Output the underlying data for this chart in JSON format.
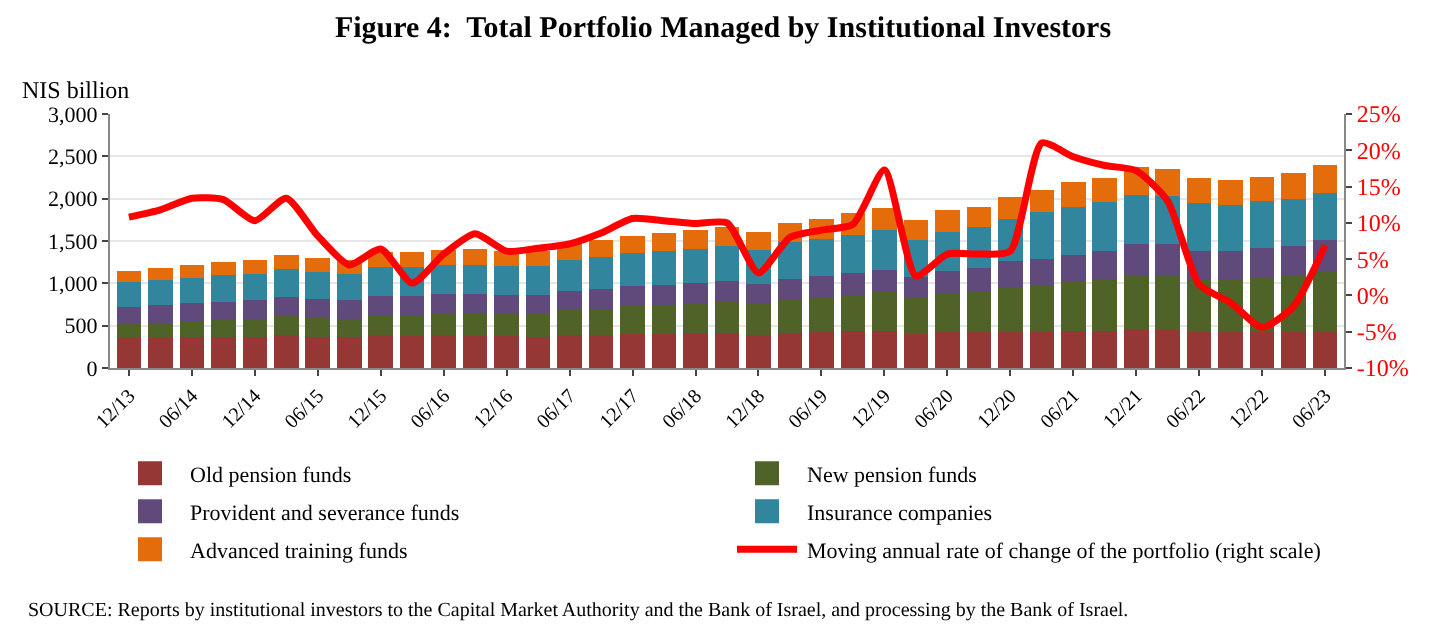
{
  "chart_data": {
    "type": "bar",
    "stacked": true,
    "title": "Figure 4:  Total Portfolio Managed by Institutional Investors",
    "ylabel": "NIS billion",
    "categories": [
      "12/13",
      null,
      "06/14",
      null,
      "12/14",
      null,
      "06/15",
      null,
      "12/15",
      null,
      "06/16",
      null,
      "12/16",
      null,
      "06/17",
      null,
      "12/17",
      null,
      "06/18",
      null,
      "12/18",
      null,
      "06/19",
      null,
      "12/19",
      null,
      "06/20",
      null,
      "12/20",
      null,
      "06/21",
      null,
      "12/21",
      null,
      "06/22",
      null,
      "12/22",
      null,
      "06/23"
    ],
    "series": [
      {
        "name": "Old pension funds",
        "color": "#953735",
        "values": [
          350,
          355,
          364,
          369,
          372,
          387,
          372,
          362,
          385,
          381,
          384,
          381,
          373,
          367,
          387,
          393,
          402,
          404,
          409,
          414,
          395,
          417,
          424,
          433,
          442,
          404,
          425,
          425,
          425,
          430,
          435,
          440,
          460,
          450,
          425,
          420,
          420,
          420,
          425
        ]
      },
      {
        "name": "New pension funds",
        "color": "#4f6228",
        "values": [
          170,
          179,
          189,
          199,
          208,
          224,
          221,
          222,
          244,
          249,
          258,
          265,
          267,
          271,
          294,
          308,
          326,
          336,
          350,
          366,
          358,
          388,
          406,
          427,
          450,
          422,
          457,
          473,
          520,
          546,
          581,
          599,
          642,
          644,
          614,
          619,
          643,
          674,
          716
        ]
      },
      {
        "name": "Provident and severance funds",
        "color": "#604a7b",
        "values": [
          205,
          208,
          213,
          217,
          219,
          228,
          220,
          214,
          227,
          225,
          227,
          226,
          222,
          219,
          231,
          235,
          241,
          242,
          246,
          250,
          238,
          251,
          256,
          262,
          268,
          246,
          259,
          283,
          315,
          315,
          322,
          347,
          362,
          370,
          347,
          347,
          354,
          347,
          371
        ]
      },
      {
        "name": "Insurance companies",
        "color": "#31859c",
        "values": [
          285,
          293,
          303,
          310,
          316,
          332,
          322,
          316,
          340,
          340,
          346,
          347,
          343,
          343,
          365,
          375,
          389,
          395,
          405,
          415,
          399,
          427,
          439,
          454,
          470,
          436,
          465,
          480,
          504,
          552,
          568,
          575,
          583,
          567,
          567,
          543,
          552,
          551,
          551
        ]
      },
      {
        "name": "Advanced training funds",
        "color": "#e46c0a",
        "values": [
          140,
          145,
          150,
          155,
          160,
          168,
          164,
          162,
          174,
          175,
          179,
          181,
          180,
          180,
          193,
          199,
          207,
          212,
          218,
          225,
          216,
          233,
          240,
          250,
          260,
          242,
          260,
          245,
          260,
          259,
          291,
          283,
          331,
          323,
          291,
          291,
          291,
          307,
          330
        ]
      },
      {
        "name": "Moving annual rate of change of the portfolio (right scale)",
        "color": "#ff0000",
        "type": "line",
        "axis": "y2",
        "line_style": "solid",
        "marker": "none",
        "values": [
          10.8,
          11.8,
          13.4,
          13.2,
          10.3,
          13.4,
          8.2,
          4.2,
          6.4,
          1.7,
          5.7,
          8.5,
          6.1,
          6.5,
          7.1,
          8.6,
          10.6,
          10.3,
          9.9,
          10.0,
          3.1,
          8.0,
          9.0,
          9.8,
          17.3,
          2.7,
          5.7,
          5.7,
          6.1,
          21.0,
          19.1,
          17.9,
          17.2,
          13.0,
          1.5,
          -1.0,
          -4.4,
          -1.5,
          6.9
        ]
      }
    ],
    "ylim": [
      0,
      3000
    ],
    "yticks": [
      0,
      500,
      {
        "value": 1000,
        "label": "1,000"
      },
      {
        "value": 1500,
        "label": "1,500"
      },
      {
        "value": 2000,
        "label": "2,000"
      },
      {
        "value": 2500,
        "label": "2,500"
      },
      {
        "value": 3000,
        "label": "3,000"
      }
    ],
    "y2lim": [
      -10,
      25
    ],
    "y2ticks": [
      {
        "value": -10,
        "label": "-10%"
      },
      {
        "value": -5,
        "label": "-5%"
      },
      {
        "value": 0,
        "label": "0%"
      },
      {
        "value": 5,
        "label": "5%"
      },
      {
        "value": 10,
        "label": "10%"
      },
      {
        "value": 15,
        "label": "15%"
      },
      {
        "value": 20,
        "label": "20%"
      },
      {
        "value": 25,
        "label": "25%"
      }
    ],
    "grid": "y",
    "legend": "bottom",
    "annotations": [
      "SOURCE: Reports by institutional investors to the Capital Market Authority and the Bank of Israel, and processing by the Bank of Israel."
    ]
  }
}
